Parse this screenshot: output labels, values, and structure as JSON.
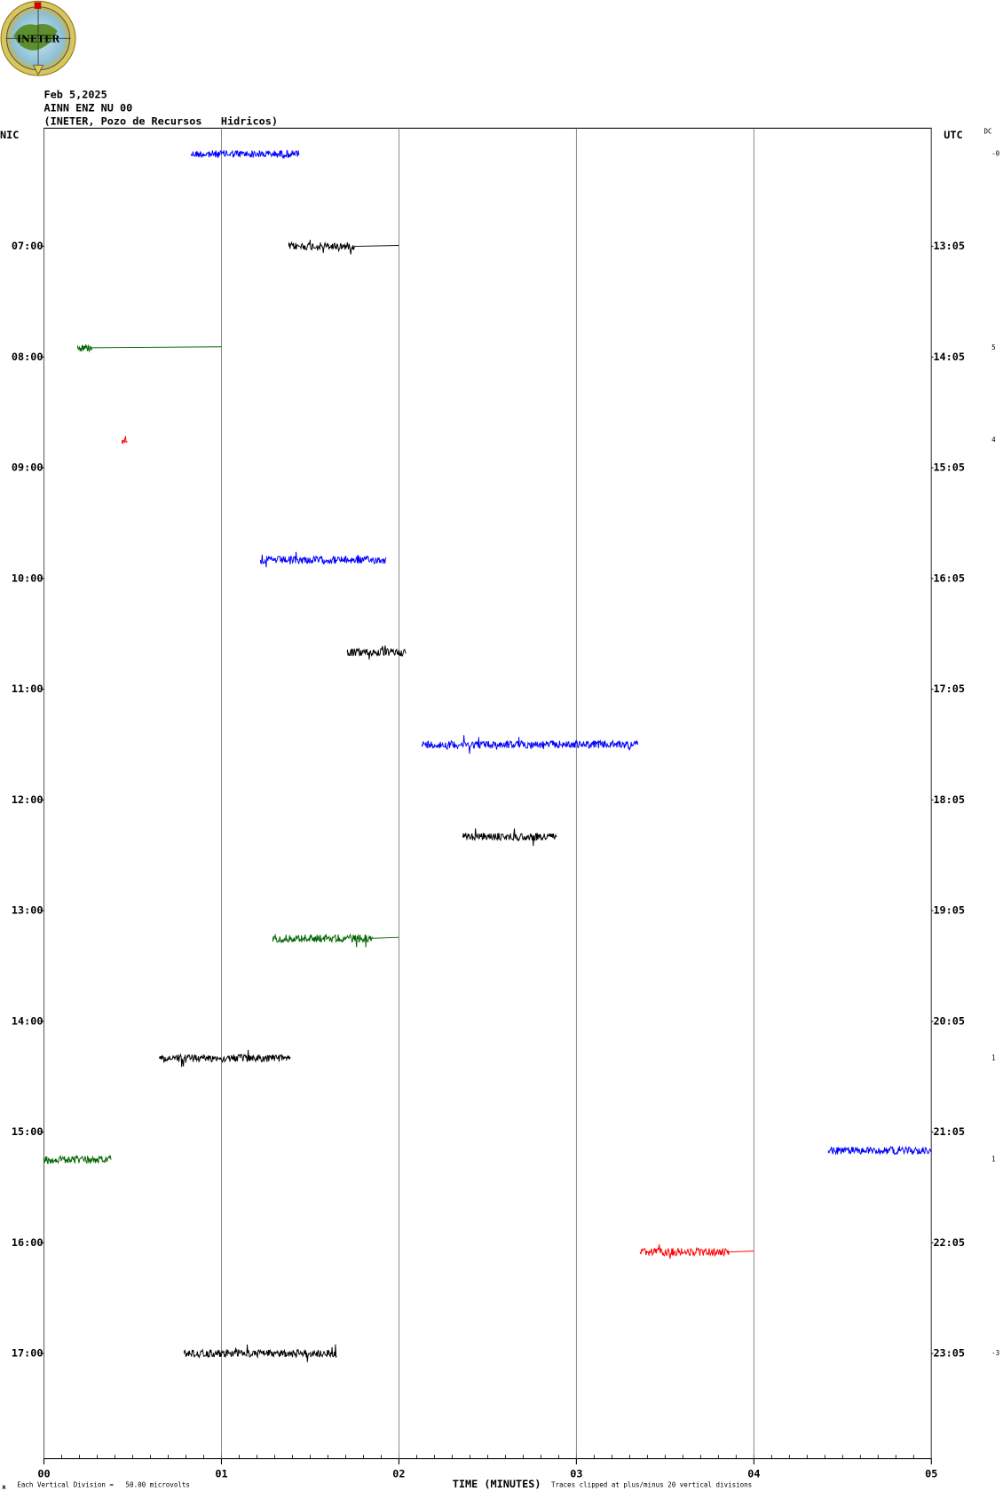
{
  "chart_data": {
    "type": "helicorder",
    "logo_text": "INETER",
    "title": "Feb 5,2025",
    "subtitle": [
      "AINN ENZ NU 00",
      "(INETER, Pozo de Recursos   Hidricos)"
    ],
    "ylabel_left": "NIC",
    "ylabel_right": "UTC",
    "xlabel": "TIME (MINUTES)",
    "scale_note": "Each Vertical Division =   50.00 microvolts",
    "clip_note": "Traces clipped at plus/minus 20 vertical divisions",
    "dc_label": "DC",
    "xlim": [
      0,
      5
    ],
    "xticks": [
      {
        "value": 0,
        "label": "00"
      },
      {
        "value": 1,
        "label": "01"
      },
      {
        "value": 2,
        "label": "02"
      },
      {
        "value": 3,
        "label": "03"
      },
      {
        "value": 4,
        "label": "04"
      },
      {
        "value": 5,
        "label": "05"
      }
    ],
    "xminor_step": 0.1,
    "ylim": [
      -4,
      717
    ],
    "yticks": [
      {
        "value": 60,
        "label": "07:00"
      },
      {
        "value": 120,
        "label": "08:00"
      },
      {
        "value": 180,
        "label": "09:00"
      },
      {
        "value": 240,
        "label": "10:00"
      },
      {
        "value": 300,
        "label": "11:00"
      },
      {
        "value": 360,
        "label": "12:00"
      },
      {
        "value": 420,
        "label": "13:00"
      },
      {
        "value": 480,
        "label": "14:00"
      },
      {
        "value": 540,
        "label": "15:00"
      },
      {
        "value": 600,
        "label": "16:00"
      },
      {
        "value": 660,
        "label": "17:00"
      }
    ],
    "y2ticks": [
      {
        "value": 60,
        "label": "13:05"
      },
      {
        "value": 120,
        "label": "14:05"
      },
      {
        "value": 180,
        "label": "15:05"
      },
      {
        "value": 240,
        "label": "16:05"
      },
      {
        "value": 300,
        "label": "17:05"
      },
      {
        "value": 360,
        "label": "18:05"
      },
      {
        "value": 420,
        "label": "19:05"
      },
      {
        "value": 480,
        "label": "20:05"
      },
      {
        "value": 540,
        "label": "21:05"
      },
      {
        "value": 600,
        "label": "22:05"
      },
      {
        "value": 660,
        "label": "23:05"
      }
    ],
    "grid": true,
    "traces": [
      {
        "line": 10,
        "start": 0.83,
        "end": 1.44,
        "color": "#0000ff"
      },
      {
        "line": 60,
        "start": 1.38,
        "end": 2.0,
        "flat_from": 1.75,
        "color": "#000000"
      },
      {
        "line": 115,
        "start": 0.19,
        "end": 1.0,
        "flat_from": 0.27,
        "color": "#006400"
      },
      {
        "line": 165,
        "start": 0.44,
        "end": 0.47,
        "color": "#ff0000"
      },
      {
        "line": 230,
        "start": 1.22,
        "end": 1.93,
        "color": "#0000ff"
      },
      {
        "line": 280,
        "start": 1.71,
        "end": 2.04,
        "color": "#000000"
      },
      {
        "line": 330,
        "start": 2.13,
        "end": 3.35,
        "color": "#0000ff"
      },
      {
        "line": 380,
        "start": 2.36,
        "end": 2.89,
        "color": "#000000"
      },
      {
        "line": 435,
        "start": 1.29,
        "end": 2.0,
        "flat_from": 1.85,
        "color": "#006400"
      },
      {
        "line": 500,
        "start": 0.65,
        "end": 1.39,
        "color": "#000000"
      },
      {
        "line": 550,
        "start": 4.42,
        "end": 5.0,
        "color": "#0000ff"
      },
      {
        "line": 555,
        "start": 0.0,
        "end": 0.38,
        "color": "#006400"
      },
      {
        "line": 605,
        "start": 3.36,
        "end": 4.0,
        "flat_from": 3.86,
        "color": "#ff0000"
      },
      {
        "line": 660,
        "start": 0.79,
        "end": 1.65,
        "color": "#000000"
      }
    ],
    "side_labels": [
      {
        "text": "-0",
        "line": 10
      },
      {
        "text": "5",
        "line": 115
      },
      {
        "text": "4",
        "line": 165
      },
      {
        "text": "1",
        "line": 500
      },
      {
        "text": "1",
        "line": 555
      },
      {
        "text": "-3",
        "line": 660
      }
    ]
  }
}
